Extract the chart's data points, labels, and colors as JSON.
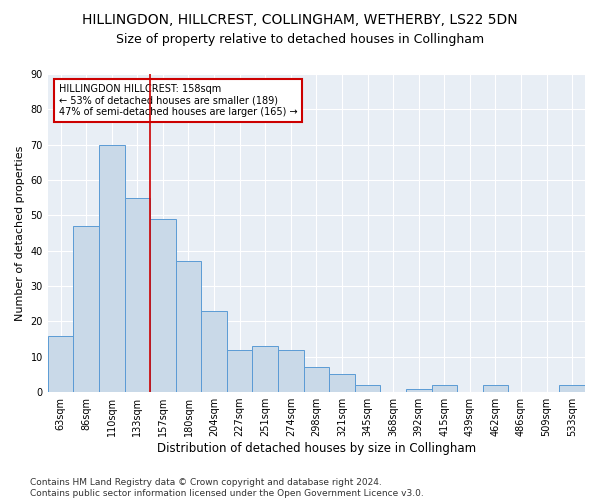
{
  "title": "HILLINGDON, HILLCREST, COLLINGHAM, WETHERBY, LS22 5DN",
  "subtitle": "Size of property relative to detached houses in Collingham",
  "xlabel": "Distribution of detached houses by size in Collingham",
  "ylabel": "Number of detached properties",
  "categories": [
    "63sqm",
    "86sqm",
    "110sqm",
    "133sqm",
    "157sqm",
    "180sqm",
    "204sqm",
    "227sqm",
    "251sqm",
    "274sqm",
    "298sqm",
    "321sqm",
    "345sqm",
    "368sqm",
    "392sqm",
    "415sqm",
    "439sqm",
    "462sqm",
    "486sqm",
    "509sqm",
    "533sqm"
  ],
  "values": [
    16,
    47,
    70,
    55,
    49,
    37,
    23,
    12,
    13,
    12,
    7,
    5,
    2,
    0,
    1,
    2,
    0,
    2,
    0,
    0,
    2
  ],
  "bar_color": "#c9d9e8",
  "bar_edge_color": "#5b9bd5",
  "vline_x": 4.0,
  "vline_color": "#cc0000",
  "ylim": [
    0,
    90
  ],
  "yticks": [
    0,
    10,
    20,
    30,
    40,
    50,
    60,
    70,
    80,
    90
  ],
  "annotation_text": "HILLINGDON HILLCREST: 158sqm\n← 53% of detached houses are smaller (189)\n47% of semi-detached houses are larger (165) →",
  "annotation_box_color": "#cc0000",
  "footer_line1": "Contains HM Land Registry data © Crown copyright and database right 2024.",
  "footer_line2": "Contains public sector information licensed under the Open Government Licence v3.0.",
  "title_fontsize": 10,
  "subtitle_fontsize": 9,
  "ylabel_fontsize": 8,
  "xlabel_fontsize": 8.5,
  "tick_fontsize": 7,
  "annotation_fontsize": 7,
  "footer_fontsize": 6.5,
  "bg_color": "#e8eef5"
}
